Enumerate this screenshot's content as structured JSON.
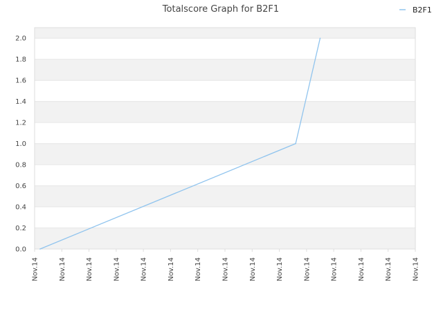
{
  "chart_data": {
    "type": "line",
    "title": "Totalscore Graph for B2F1",
    "xlabel": "",
    "ylabel": "",
    "ylim": [
      0,
      2.1
    ],
    "yticks": [
      "0.0",
      "0.2",
      "0.4",
      "0.6",
      "0.8",
      "1.0",
      "1.2",
      "1.4",
      "1.6",
      "1.8",
      "2.0"
    ],
    "xtick_labels": [
      "Nov.14",
      "Nov.14",
      "Nov.14",
      "Nov.14",
      "Nov.14",
      "Nov.14",
      "Nov.14",
      "Nov.14",
      "Nov.14",
      "Nov.14",
      "Nov.14",
      "Nov.14",
      "Nov.14",
      "Nov.14",
      "Nov.14"
    ],
    "grid": "horizontal alternating bands",
    "legend_position": "top-right",
    "series": [
      {
        "name": "B2F1",
        "color": "#90c4ee",
        "x": [
          0.2,
          9.6,
          10.5
        ],
        "values": [
          0.0,
          1.0,
          2.0
        ]
      }
    ]
  },
  "colors": {
    "band": "#f2f2f2",
    "axis": "#dddddd"
  }
}
